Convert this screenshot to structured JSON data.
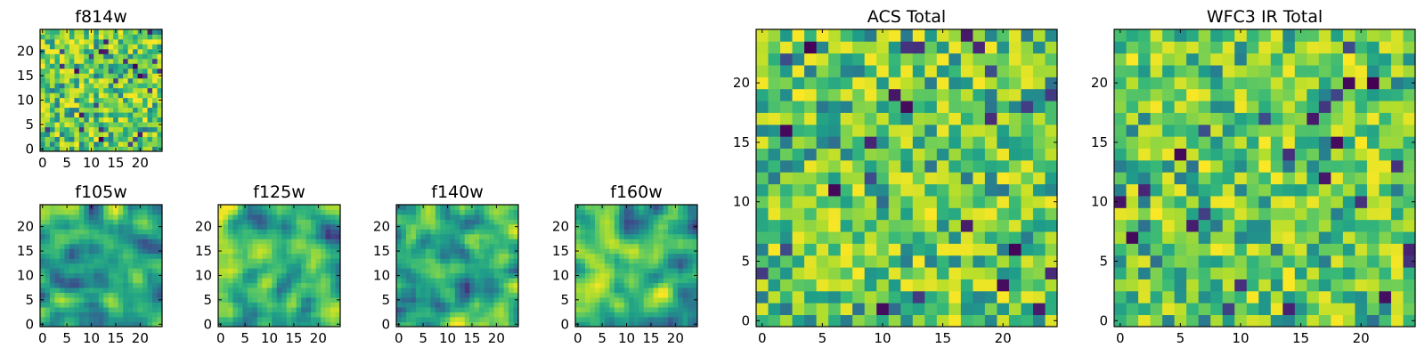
{
  "chart_data": [
    {
      "type": "heatmap",
      "title": "f814w",
      "grid_size": 25,
      "colormap": "viridis",
      "xticks": [
        "0",
        "5",
        "10",
        "15",
        "20"
      ],
      "yticks": [
        "0",
        "5",
        "10",
        "15",
        "20"
      ],
      "xlim": [
        -0.5,
        24.5
      ],
      "ylim": [
        -0.5,
        24.5
      ],
      "texture": "noise",
      "seed": 11
    },
    {
      "type": "heatmap",
      "title": "f105w",
      "grid_size": 25,
      "colormap": "viridis",
      "xticks": [
        "0",
        "5",
        "10",
        "15",
        "20"
      ],
      "yticks": [
        "0",
        "5",
        "10",
        "15",
        "20"
      ],
      "xlim": [
        -0.5,
        24.5
      ],
      "ylim": [
        -0.5,
        24.5
      ],
      "texture": "smooth",
      "seed": 23
    },
    {
      "type": "heatmap",
      "title": "f125w",
      "grid_size": 25,
      "colormap": "viridis",
      "xticks": [
        "0",
        "5",
        "10",
        "15",
        "20"
      ],
      "yticks": [
        "0",
        "5",
        "10",
        "15",
        "20"
      ],
      "xlim": [
        -0.5,
        24.5
      ],
      "ylim": [
        -0.5,
        24.5
      ],
      "texture": "smooth",
      "seed": 37
    },
    {
      "type": "heatmap",
      "title": "f140w",
      "grid_size": 25,
      "colormap": "viridis",
      "xticks": [
        "0",
        "5",
        "10",
        "15",
        "20"
      ],
      "yticks": [
        "0",
        "5",
        "10",
        "15",
        "20"
      ],
      "xlim": [
        -0.5,
        24.5
      ],
      "ylim": [
        -0.5,
        24.5
      ],
      "texture": "smooth",
      "seed": 41
    },
    {
      "type": "heatmap",
      "title": "f160w",
      "grid_size": 25,
      "colormap": "viridis",
      "xticks": [
        "0",
        "5",
        "10",
        "15",
        "20"
      ],
      "yticks": [
        "0",
        "5",
        "10",
        "15",
        "20"
      ],
      "xlim": [
        -0.5,
        24.5
      ],
      "ylim": [
        -0.5,
        24.5
      ],
      "texture": "smooth",
      "seed": 53
    },
    {
      "type": "heatmap",
      "title": "ACS Total",
      "grid_size": 25,
      "colormap": "viridis",
      "xticks": [
        "0",
        "5",
        "10",
        "15",
        "20"
      ],
      "yticks": [
        "0",
        "5",
        "10",
        "15",
        "20"
      ],
      "xlim": [
        -0.5,
        24.5
      ],
      "ylim": [
        -0.5,
        24.5
      ],
      "texture": "noise",
      "seed": 67
    },
    {
      "type": "heatmap",
      "title": "WFC3 IR Total",
      "grid_size": 25,
      "colormap": "viridis",
      "xticks": [
        "0",
        "5",
        "10",
        "15",
        "20"
      ],
      "yticks": [
        "0",
        "5",
        "10",
        "15",
        "20"
      ],
      "xlim": [
        -0.5,
        24.5
      ],
      "ylim": [
        -0.5,
        24.5
      ],
      "texture": "noise",
      "seed": 79
    }
  ]
}
